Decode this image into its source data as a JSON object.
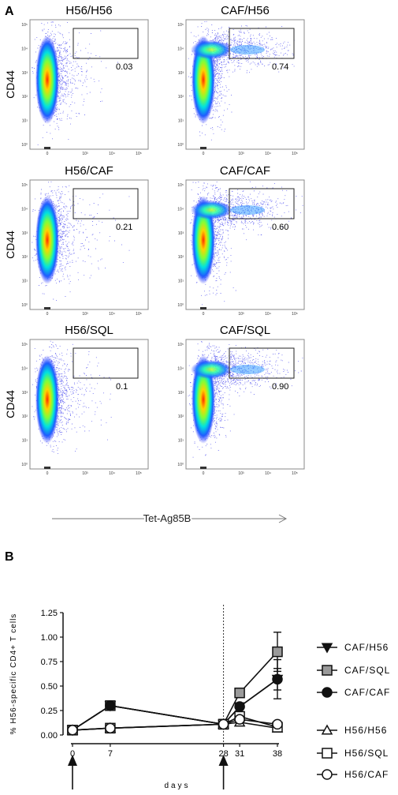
{
  "panel_a": {
    "letter": "A",
    "y_label": "CD44",
    "x_label": "Tet-Ag85B",
    "tick_labels": {
      "y": [
        "10⁵",
        "10⁴",
        "10³",
        "10²",
        "10¹",
        "10⁰"
      ],
      "x": [
        "0",
        "10³",
        "10⁴",
        "10⁵"
      ]
    },
    "plots": [
      {
        "title": "H56/H56",
        "gate": "0.03",
        "double_pop": false
      },
      {
        "title": "CAF/H56",
        "gate": "0.74",
        "double_pop": true
      },
      {
        "title": "H56/CAF",
        "gate": "0.21",
        "double_pop": false
      },
      {
        "title": "CAF/CAF",
        "gate": "0.60",
        "double_pop": true
      },
      {
        "title": "H56/SQL",
        "gate": "0.1",
        "double_pop": false
      },
      {
        "title": "CAF/SQL",
        "gate": "0.90",
        "double_pop": true
      }
    ]
  },
  "panel_b": {
    "letter": "B",
    "ylabel": "% H56-specific CD4+ T cells",
    "xlabel": "days"
  },
  "chart_data": {
    "type": "line",
    "x": [
      0,
      7,
      28,
      31,
      38
    ],
    "xlabel": "days",
    "ylabel": "% H56-specific CD4+ T cells",
    "ylim": [
      0,
      1.25
    ],
    "y_ticks": [
      "0.00",
      "0.25",
      "0.50",
      "0.75",
      "1.00",
      "1.25"
    ],
    "x_ticks": [
      "0",
      "7",
      "28",
      "31",
      "38"
    ],
    "vline_x": 28,
    "arrows_at": [
      0,
      28
    ],
    "series": [
      {
        "name": "CAF/H56",
        "marker": "triangle-down",
        "fill": "#111111",
        "x": [
          0,
          7,
          28,
          31,
          38
        ],
        "values": [
          0.05,
          0.3,
          0.11,
          0.29,
          0.57
        ],
        "error": [
          0,
          0,
          0,
          0,
          0.11
        ]
      },
      {
        "name": "CAF/SQL",
        "marker": "square",
        "fill": "#9a9a9a",
        "x": [
          0,
          7,
          28,
          31,
          38
        ],
        "values": [
          0.05,
          0.3,
          0.11,
          0.43,
          0.85
        ],
        "error": [
          0,
          0,
          0,
          0,
          0.2
        ]
      },
      {
        "name": "CAF/CAF",
        "marker": "circle",
        "fill": "#111111",
        "x": [
          0,
          7,
          28,
          31,
          38
        ],
        "values": [
          0.05,
          0.3,
          0.11,
          0.29,
          0.57
        ],
        "error": [
          0,
          0,
          0,
          0,
          0.2
        ]
      },
      {
        "name": "H56/H56",
        "marker": "triangle-up",
        "fill": "#ffffff",
        "x": [
          0,
          7,
          28,
          31,
          38
        ],
        "values": [
          0.05,
          0.07,
          0.11,
          0.13,
          0.07
        ],
        "error": [
          0,
          0,
          0,
          0,
          0
        ]
      },
      {
        "name": "H56/SQL",
        "marker": "square",
        "fill": "#ffffff",
        "x": [
          0,
          7,
          28,
          31,
          38
        ],
        "values": [
          0.05,
          0.07,
          0.11,
          0.19,
          0.08
        ],
        "error": [
          0,
          0,
          0,
          0.04,
          0
        ]
      },
      {
        "name": "H56/CAF",
        "marker": "circle",
        "fill": "#ffffff",
        "x": [
          0,
          7,
          28,
          31,
          38
        ],
        "values": [
          0.05,
          0.07,
          0.11,
          0.16,
          0.11
        ],
        "error": [
          0,
          0,
          0,
          0,
          0
        ]
      }
    ]
  }
}
